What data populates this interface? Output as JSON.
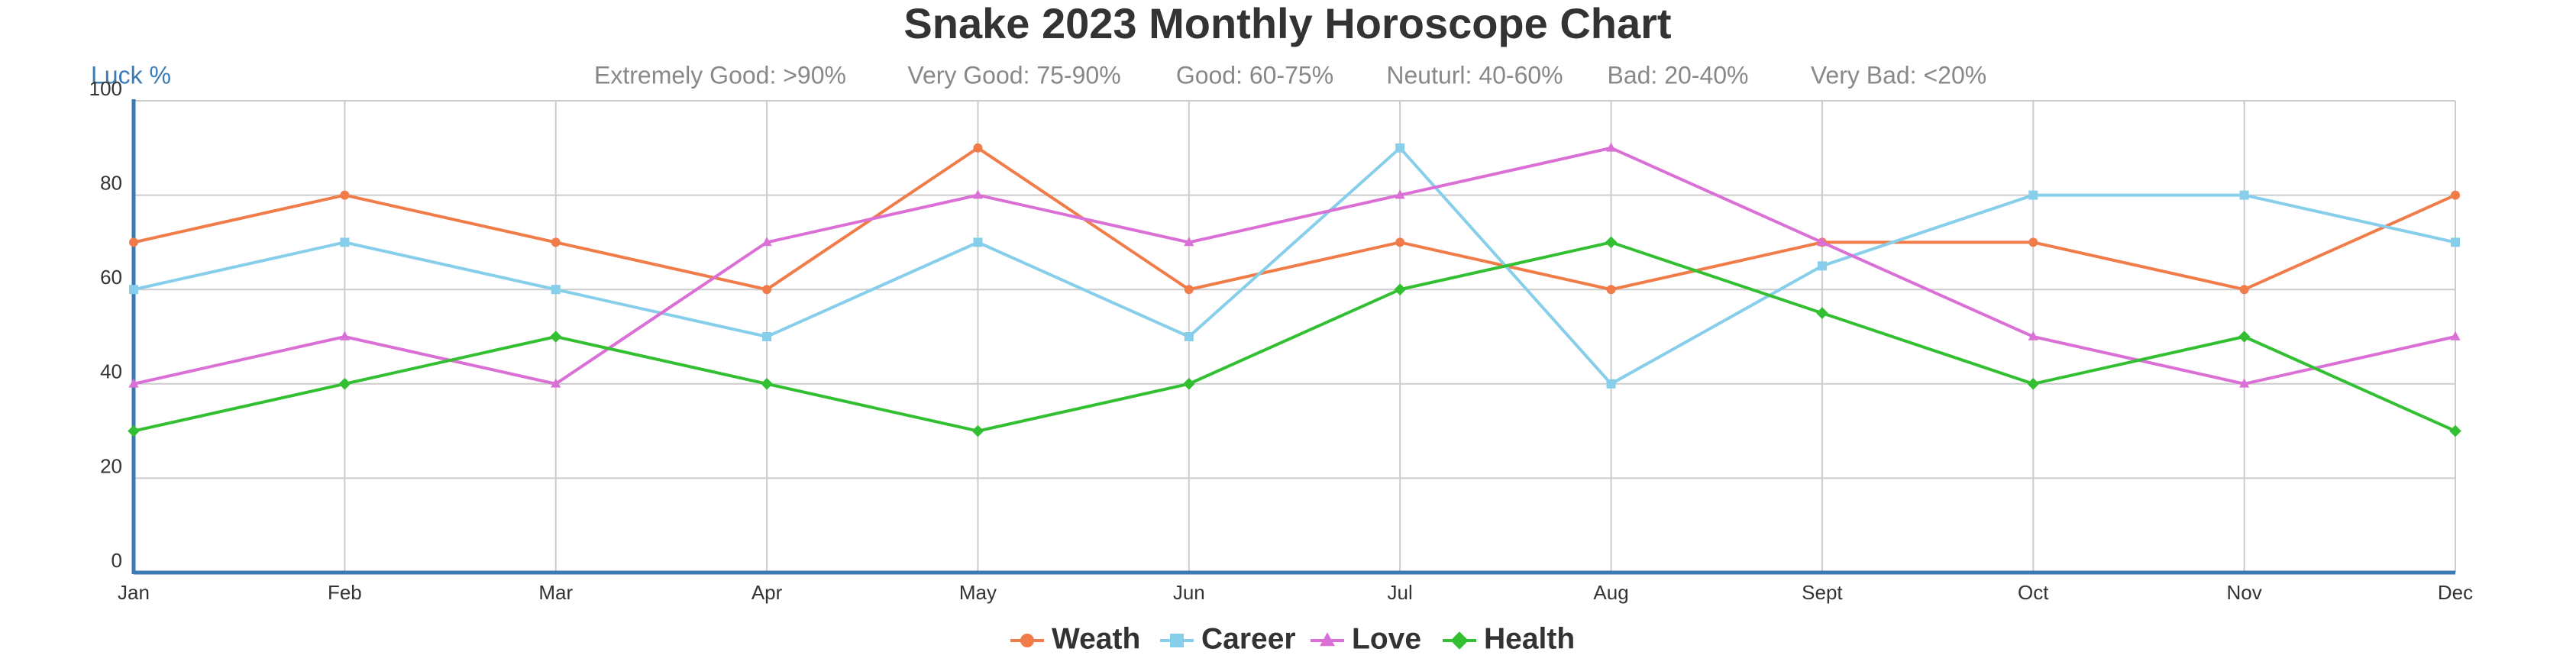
{
  "chart_data": {
    "type": "line",
    "title": "Snake 2023 Monthly Horoscope Chart",
    "ratings": [
      "Extremely Good: >90%",
      "Very Good: 75-90%",
      "Good: 60-75%",
      "Neuturl: 40-60%",
      "Bad: 20-40%",
      "Very Bad: <20%"
    ],
    "y_label": "Luck %",
    "categories": [
      "Jan",
      "Feb",
      "Mar",
      "Apr",
      "May",
      "Jun",
      "Jul",
      "Aug",
      "Sept",
      "Oct",
      "Nov",
      "Dec"
    ],
    "series": [
      {
        "name": "Weath",
        "color": "#f07c4a",
        "marker": "circle",
        "values": [
          70,
          80,
          70,
          60,
          90,
          60,
          70,
          60,
          70,
          70,
          60,
          80
        ]
      },
      {
        "name": "Career",
        "color": "#87ceeb",
        "marker": "square",
        "values": [
          60,
          70,
          60,
          50,
          70,
          50,
          90,
          40,
          65,
          80,
          80,
          70
        ]
      },
      {
        "name": "Love",
        "color": "#da70d6",
        "marker": "triangle",
        "values": [
          40,
          50,
          40,
          70,
          80,
          70,
          80,
          90,
          70,
          50,
          40,
          50
        ]
      },
      {
        "name": "Health",
        "color": "#32c032",
        "marker": "diamond",
        "values": [
          30,
          40,
          50,
          40,
          30,
          40,
          60,
          70,
          55,
          40,
          50,
          30
        ]
      }
    ],
    "ylim": [
      0,
      100
    ],
    "yticks": [
      0,
      20,
      40,
      60,
      80,
      100
    ],
    "grid": true
  }
}
